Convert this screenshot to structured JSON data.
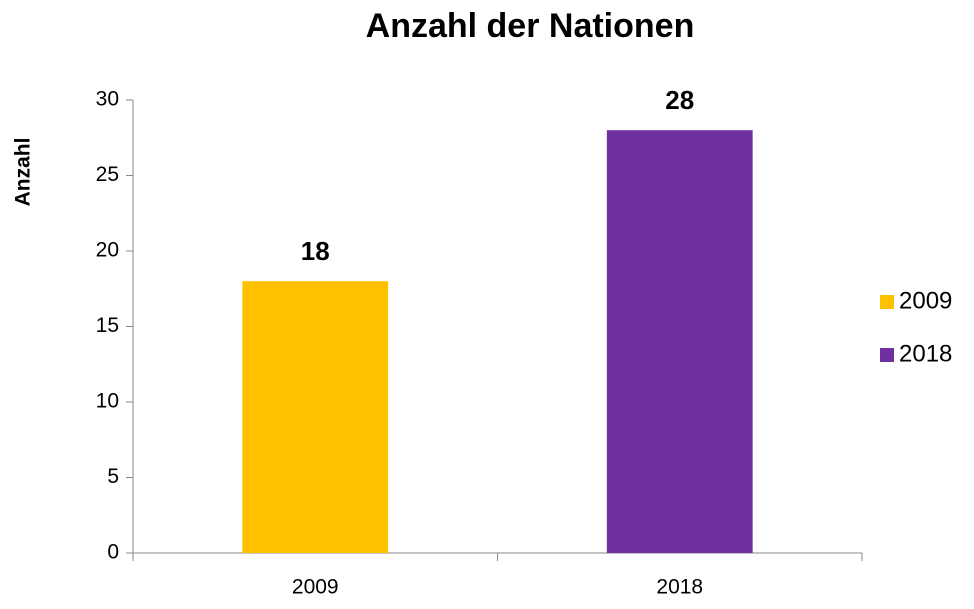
{
  "chart_data": {
    "type": "bar",
    "title": "Anzahl der Nationen",
    "y_label": "Anzahl",
    "categories": [
      "2009",
      "2018"
    ],
    "values": [
      18,
      28
    ],
    "colors": [
      "#ffc000",
      "#7030a0"
    ],
    "ylim": [
      0,
      30
    ],
    "yticks": [
      0,
      5,
      10,
      15,
      20,
      25,
      30
    ],
    "grid": false,
    "legend": "right"
  }
}
